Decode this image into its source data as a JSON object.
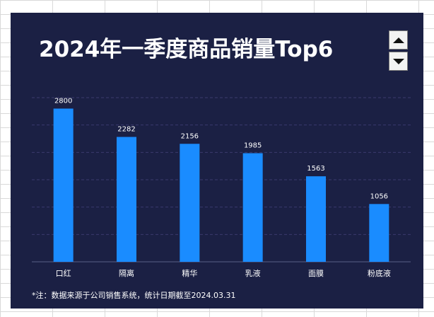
{
  "chart_data": {
    "type": "bar",
    "title": "2024年一季度商品销量Top6",
    "categories": [
      "口红",
      "隔离",
      "精华",
      "乳液",
      "面膜",
      "粉底液"
    ],
    "values": [
      2800,
      2282,
      2156,
      1985,
      1563,
      1056
    ],
    "ylim": [
      0,
      3000
    ],
    "grid": true,
    "bar_color": "#1a8cff",
    "background_color": "#1b2044",
    "footnote": "*注：数据来源于公司销售系统，统计日期截至2024.03.31"
  }
}
